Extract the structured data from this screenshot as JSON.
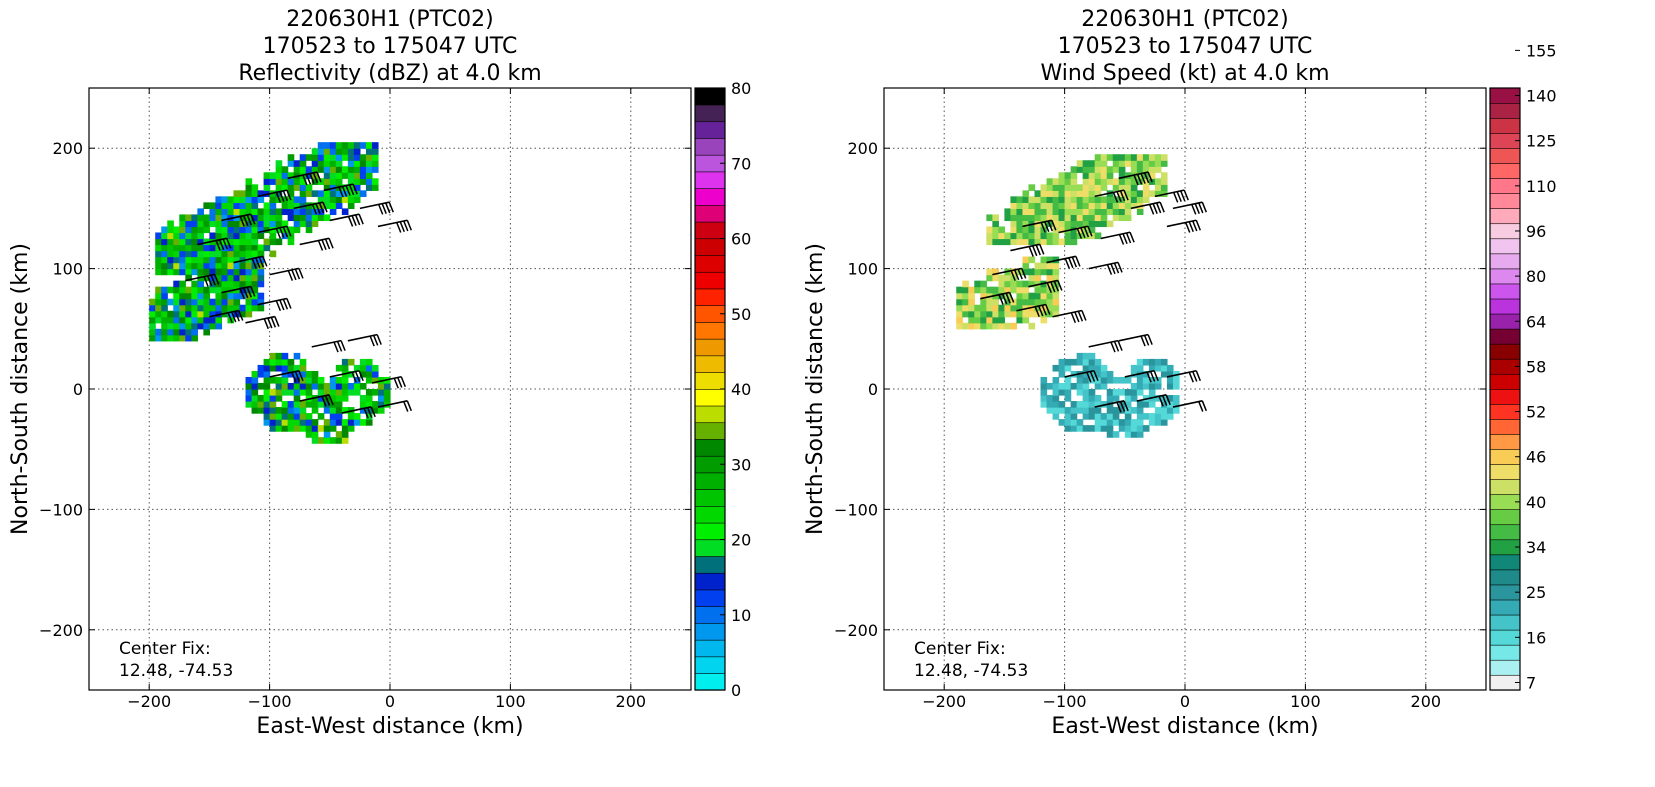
{
  "chart_data": [
    {
      "type": "heatmap",
      "title_lines": [
        "220630H1 (PTC02)",
        "170523 to 175047 UTC",
        "Reflectivity (dBZ) at 4.0 km"
      ],
      "xlabel": "East-West distance (km)",
      "ylabel": "North-South distance (km)",
      "xlim": [
        -250,
        250
      ],
      "ylim": [
        -250,
        250
      ],
      "xticks": [
        -200,
        -100,
        0,
        100,
        200
      ],
      "yticks": [
        -200,
        -100,
        0,
        100,
        200
      ],
      "xtick_labels": [
        "−200",
        "−100",
        "0",
        "100",
        "200"
      ],
      "ytick_labels": [
        "−200",
        "−100",
        "0",
        "100",
        "200"
      ],
      "grid": true,
      "annotation": [
        "Center Fix:",
        "12.48, -74.53"
      ],
      "colorbar": {
        "colors": [
          "#00eeee",
          "#00d4ee",
          "#00b8ee",
          "#0098ee",
          "#0070ee",
          "#0040ee",
          "#0022cc",
          "#00707a",
          "#00dd22",
          "#00ee00",
          "#00d800",
          "#00c400",
          "#00b000",
          "#009c00",
          "#008800",
          "#66b000",
          "#bbdd00",
          "#ffff00",
          "#eedd00",
          "#eebb00",
          "#ee9900",
          "#ff7700",
          "#ff5500",
          "#ff2200",
          "#ee0000",
          "#dd0000",
          "#cc0000",
          "#cc0011",
          "#dd0077",
          "#ee00cc",
          "#dd33ee",
          "#bb55dd",
          "#9944bb",
          "#662299",
          "#442255",
          "#000000"
        ],
        "ticks": [
          0,
          10,
          20,
          30,
          40,
          50,
          60,
          70,
          80
        ],
        "tick_labels": [
          "0",
          "10",
          "20",
          "30",
          "40",
          "50",
          "60",
          "70",
          "80"
        ],
        "range": [
          0,
          80
        ]
      },
      "cell_size_km": 5,
      "cells": [
        {
          "region": "north-band",
          "x": [
            -195,
            -15
          ],
          "y": [
            95,
            200
          ],
          "dbz": [
            8,
            36
          ]
        },
        {
          "region": "west-band",
          "x": [
            -200,
            -110
          ],
          "y": [
            40,
            110
          ],
          "dbz": [
            8,
            36
          ]
        },
        {
          "region": "inner-core",
          "x": [
            -125,
            -5
          ],
          "y": [
            -45,
            45
          ],
          "dbz": [
            8,
            36
          ]
        }
      ],
      "barbs": [
        {
          "x": -85,
          "y": 175,
          "kt": 45
        },
        {
          "x": -55,
          "y": 165,
          "kt": 45
        },
        {
          "x": -25,
          "y": 150,
          "kt": 40
        },
        {
          "x": -10,
          "y": 135,
          "kt": 40
        },
        {
          "x": -110,
          "y": 160,
          "kt": 40
        },
        {
          "x": -80,
          "y": 150,
          "kt": 40
        },
        {
          "x": -50,
          "y": 140,
          "kt": 40
        },
        {
          "x": -140,
          "y": 140,
          "kt": 40
        },
        {
          "x": -110,
          "y": 130,
          "kt": 40
        },
        {
          "x": -75,
          "y": 120,
          "kt": 40
        },
        {
          "x": -160,
          "y": 120,
          "kt": 40
        },
        {
          "x": -130,
          "y": 105,
          "kt": 40
        },
        {
          "x": -100,
          "y": 95,
          "kt": 40
        },
        {
          "x": -170,
          "y": 90,
          "kt": 40
        },
        {
          "x": -140,
          "y": 80,
          "kt": 40
        },
        {
          "x": -110,
          "y": 70,
          "kt": 40
        },
        {
          "x": -150,
          "y": 60,
          "kt": 40
        },
        {
          "x": -120,
          "y": 55,
          "kt": 35
        },
        {
          "x": -65,
          "y": 35,
          "kt": 30
        },
        {
          "x": -35,
          "y": 40,
          "kt": 25
        },
        {
          "x": -100,
          "y": 10,
          "kt": 30
        },
        {
          "x": -50,
          "y": 10,
          "kt": 30
        },
        {
          "x": -15,
          "y": 5,
          "kt": 25
        },
        {
          "x": -75,
          "y": -10,
          "kt": 25
        },
        {
          "x": -40,
          "y": -20,
          "kt": 25
        },
        {
          "x": -10,
          "y": -15,
          "kt": 20
        }
      ]
    },
    {
      "type": "heatmap",
      "title_lines": [
        "220630H1 (PTC02)",
        "170523 to 175047 UTC",
        "Wind Speed (kt) at 4.0 km"
      ],
      "xlabel": "East-West distance (km)",
      "ylabel": "North-South distance (km)",
      "xlim": [
        -250,
        250
      ],
      "ylim": [
        -250,
        250
      ],
      "xticks": [
        -200,
        -100,
        0,
        100,
        200
      ],
      "yticks": [
        -200,
        -100,
        0,
        100,
        200
      ],
      "xtick_labels": [
        "−200",
        "−100",
        "0",
        "100",
        "200"
      ],
      "ytick_labels": [
        "−200",
        "−100",
        "0",
        "100",
        "200"
      ],
      "grid": true,
      "annotation": [
        "Center Fix:",
        "12.48, -74.53"
      ],
      "colorbar": {
        "colors": [
          "#f0f0f0",
          "#aaf0f0",
          "#77e8e8",
          "#55d8d8",
          "#44c4c8",
          "#33aab4",
          "#2a959c",
          "#1e8a8a",
          "#118877",
          "#22a044",
          "#44bb44",
          "#66cc44",
          "#99dd55",
          "#cce066",
          "#eedd66",
          "#f8cc55",
          "#ff9944",
          "#ff6633",
          "#ff3322",
          "#ee1111",
          "#cc0000",
          "#aa0000",
          "#880000",
          "#770033",
          "#9922aa",
          "#bb33dd",
          "#cc55ee",
          "#dd88ee",
          "#e8aaee",
          "#f0c4ee",
          "#f8cce0",
          "#ffaabb",
          "#ff8899",
          "#ff7788",
          "#ff6666",
          "#ee5555",
          "#dd4455",
          "#cc3344",
          "#aa2244",
          "#991144"
        ],
        "ticks": [
          7,
          16,
          25,
          34,
          40,
          46,
          52,
          58,
          64,
          80,
          96,
          110,
          125,
          140,
          155
        ],
        "tick_labels": [
          "7",
          "16",
          "25",
          "34",
          "40",
          "46",
          "52",
          "58",
          "64",
          "80",
          "96",
          "110",
          "125",
          "140",
          "155"
        ],
        "tick_bins": [
          0,
          3,
          6,
          9,
          12,
          15,
          18,
          21,
          24,
          27,
          30,
          33,
          36,
          39,
          42
        ],
        "range": [
          7,
          155
        ]
      },
      "cell_size_km": 5,
      "cells": [
        {
          "region": "north-band",
          "x": [
            -165,
            -20
          ],
          "y": [
            120,
            190
          ],
          "kt": [
            34,
            46
          ]
        },
        {
          "region": "west-band",
          "x": [
            -190,
            -110
          ],
          "y": [
            50,
            110
          ],
          "kt": [
            34,
            48
          ]
        },
        {
          "region": "inner-core",
          "x": [
            -120,
            -10
          ],
          "y": [
            -40,
            45
          ],
          "kt": [
            16,
            28
          ]
        }
      ],
      "barbs": [
        {
          "x": -55,
          "y": 175,
          "kt": 45
        },
        {
          "x": -25,
          "y": 160,
          "kt": 40
        },
        {
          "x": -10,
          "y": 150,
          "kt": 40
        },
        {
          "x": -75,
          "y": 160,
          "kt": 40
        },
        {
          "x": -45,
          "y": 150,
          "kt": 40
        },
        {
          "x": -15,
          "y": 135,
          "kt": 40
        },
        {
          "x": -135,
          "y": 135,
          "kt": 40
        },
        {
          "x": -105,
          "y": 130,
          "kt": 40
        },
        {
          "x": -70,
          "y": 125,
          "kt": 40
        },
        {
          "x": -145,
          "y": 115,
          "kt": 40
        },
        {
          "x": -115,
          "y": 105,
          "kt": 40
        },
        {
          "x": -80,
          "y": 100,
          "kt": 40
        },
        {
          "x": -160,
          "y": 95,
          "kt": 40
        },
        {
          "x": -130,
          "y": 85,
          "kt": 40
        },
        {
          "x": -170,
          "y": 75,
          "kt": 40
        },
        {
          "x": -140,
          "y": 65,
          "kt": 40
        },
        {
          "x": -110,
          "y": 60,
          "kt": 35
        },
        {
          "x": -80,
          "y": 35,
          "kt": 30
        },
        {
          "x": -55,
          "y": 40,
          "kt": 25
        },
        {
          "x": -100,
          "y": 10,
          "kt": 30
        },
        {
          "x": -50,
          "y": 10,
          "kt": 30
        },
        {
          "x": -15,
          "y": 10,
          "kt": 25
        },
        {
          "x": -75,
          "y": -15,
          "kt": 25
        },
        {
          "x": -40,
          "y": -10,
          "kt": 25
        },
        {
          "x": -10,
          "y": -15,
          "kt": 20
        }
      ]
    }
  ]
}
